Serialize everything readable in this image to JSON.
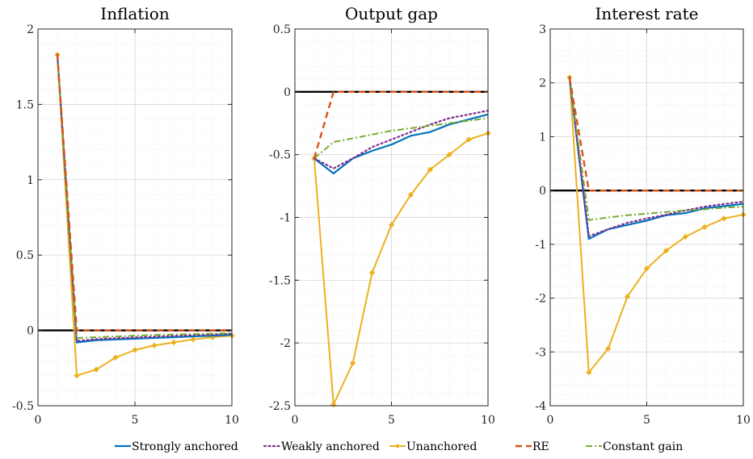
{
  "chart_data": [
    {
      "type": "line",
      "title": "Inflation",
      "xlim": [
        0,
        10
      ],
      "ylim": [
        -0.5,
        2
      ],
      "xticks": [
        0,
        5,
        10
      ],
      "yticks": [
        -0.5,
        0,
        0.5,
        1,
        1.5,
        2
      ],
      "xtick_labels": [
        "0",
        "5",
        "10"
      ],
      "ytick_labels": [
        "-0.5",
        "0",
        "0.5",
        "1",
        "1.5",
        "2"
      ],
      "grid": true,
      "zero_line": true,
      "series": [
        {
          "name": "Strongly anchored",
          "x": [
            1,
            2,
            3,
            4,
            5,
            6,
            7,
            8,
            9,
            10
          ],
          "y": [
            1.83,
            -0.08,
            -0.065,
            -0.06,
            -0.055,
            -0.05,
            -0.045,
            -0.04,
            -0.035,
            -0.03
          ]
        },
        {
          "name": "Weakly anchored",
          "x": [
            1,
            2,
            3,
            4,
            5,
            6,
            7,
            8,
            9,
            10
          ],
          "y": [
            1.83,
            -0.07,
            -0.058,
            -0.052,
            -0.047,
            -0.042,
            -0.037,
            -0.032,
            -0.027,
            -0.022
          ]
        },
        {
          "name": "Unanchored",
          "x": [
            1,
            2,
            3,
            4,
            5,
            6,
            7,
            8,
            9,
            10
          ],
          "y": [
            1.83,
            -0.3,
            -0.26,
            -0.18,
            -0.13,
            -0.1,
            -0.08,
            -0.06,
            -0.045,
            -0.035
          ]
        },
        {
          "name": "RE",
          "x": [
            1,
            2,
            3,
            4,
            5,
            6,
            7,
            8,
            9,
            10
          ],
          "y": [
            1.83,
            0,
            0,
            0,
            0,
            0,
            0,
            0,
            0,
            0
          ]
        },
        {
          "name": "Constant gain",
          "x": [
            1,
            2,
            3,
            4,
            5,
            6,
            7,
            8,
            9,
            10
          ],
          "y": [
            1.83,
            -0.05,
            -0.045,
            -0.04,
            -0.035,
            -0.03,
            -0.027,
            -0.024,
            -0.021,
            -0.018
          ]
        }
      ]
    },
    {
      "type": "line",
      "title": "Output gap",
      "xlim": [
        0,
        10
      ],
      "ylim": [
        -2.5,
        0.5
      ],
      "xticks": [
        0,
        5,
        10
      ],
      "yticks": [
        -2.5,
        -2,
        -1.5,
        -1,
        -0.5,
        0,
        0.5
      ],
      "xtick_labels": [
        "0",
        "5",
        "10"
      ],
      "ytick_labels": [
        "-2.5",
        "-2",
        "-1.5",
        "-1",
        "-0.5",
        "0",
        "0.5"
      ],
      "grid": true,
      "zero_line": true,
      "series": [
        {
          "name": "Strongly anchored",
          "x": [
            1,
            2,
            3,
            4,
            5,
            6,
            7,
            8,
            9,
            10
          ],
          "y": [
            -0.53,
            -0.65,
            -0.53,
            -0.47,
            -0.42,
            -0.35,
            -0.32,
            -0.26,
            -0.22,
            -0.18
          ]
        },
        {
          "name": "Weakly anchored",
          "x": [
            1,
            2,
            3,
            4,
            5,
            6,
            7,
            8,
            9,
            10
          ],
          "y": [
            -0.53,
            -0.61,
            -0.53,
            -0.44,
            -0.38,
            -0.32,
            -0.26,
            -0.21,
            -0.18,
            -0.15
          ]
        },
        {
          "name": "Unanchored",
          "x": [
            1,
            2,
            3,
            4,
            5,
            6,
            7,
            8,
            9,
            10
          ],
          "y": [
            -0.53,
            -2.49,
            -2.16,
            -1.44,
            -1.06,
            -0.82,
            -0.62,
            -0.5,
            -0.38,
            -0.33
          ]
        },
        {
          "name": "RE",
          "x": [
            1,
            2,
            3,
            4,
            5,
            6,
            7,
            8,
            9,
            10
          ],
          "y": [
            -0.53,
            0,
            0,
            0,
            0,
            0,
            0,
            0,
            0,
            0
          ]
        },
        {
          "name": "Constant gain",
          "x": [
            1,
            2,
            3,
            4,
            5,
            6,
            7,
            8,
            9,
            10
          ],
          "y": [
            -0.53,
            -0.4,
            -0.37,
            -0.34,
            -0.31,
            -0.29,
            -0.27,
            -0.25,
            -0.23,
            -0.21
          ]
        }
      ]
    },
    {
      "type": "line",
      "title": "Interest rate",
      "xlim": [
        0,
        10
      ],
      "ylim": [
        -4,
        3
      ],
      "xticks": [
        0,
        5,
        10
      ],
      "yticks": [
        -4,
        -3,
        -2,
        -1,
        0,
        1,
        2,
        3
      ],
      "xtick_labels": [
        "0",
        "5",
        "10"
      ],
      "ytick_labels": [
        "-4",
        "-3",
        "-2",
        "-1",
        "0",
        "1",
        "2",
        "3"
      ],
      "grid": true,
      "zero_line": true,
      "series": [
        {
          "name": "Strongly anchored",
          "x": [
            1,
            2,
            3,
            4,
            5,
            6,
            7,
            8,
            9,
            10
          ],
          "y": [
            2.1,
            -0.9,
            -0.72,
            -0.64,
            -0.56,
            -0.46,
            -0.42,
            -0.33,
            -0.29,
            -0.25
          ]
        },
        {
          "name": "Weakly anchored",
          "x": [
            1,
            2,
            3,
            4,
            5,
            6,
            7,
            8,
            9,
            10
          ],
          "y": [
            2.1,
            -0.85,
            -0.72,
            -0.6,
            -0.52,
            -0.45,
            -0.37,
            -0.3,
            -0.25,
            -0.21
          ]
        },
        {
          "name": "Unanchored",
          "x": [
            1,
            2,
            3,
            4,
            5,
            6,
            7,
            8,
            9,
            10
          ],
          "y": [
            2.1,
            -3.38,
            -2.94,
            -1.97,
            -1.45,
            -1.12,
            -0.86,
            -0.68,
            -0.52,
            -0.45
          ]
        },
        {
          "name": "RE",
          "x": [
            1,
            2,
            3,
            4,
            5,
            6,
            7,
            8,
            9,
            10
          ],
          "y": [
            2.1,
            0,
            0,
            0,
            0,
            0,
            0,
            0,
            0,
            0
          ]
        },
        {
          "name": "Constant gain",
          "x": [
            1,
            2,
            3,
            4,
            5,
            6,
            7,
            8,
            9,
            10
          ],
          "y": [
            2.1,
            -0.55,
            -0.5,
            -0.46,
            -0.43,
            -0.4,
            -0.37,
            -0.35,
            -0.32,
            -0.3
          ]
        }
      ]
    }
  ],
  "legend": {
    "placement": "bottom",
    "entries": [
      "Strongly anchored",
      "Weakly anchored",
      "Unanchored",
      "RE",
      "Constant gain"
    ]
  },
  "colors": {
    "Strongly anchored": "#0072BD",
    "Weakly anchored": "#7E2F8E",
    "Unanchored": "#EDB120",
    "RE": "#D95319",
    "Constant gain": "#77AC30",
    "zero_line": "#000000",
    "grid": "#dedede",
    "axis": "#262626"
  }
}
